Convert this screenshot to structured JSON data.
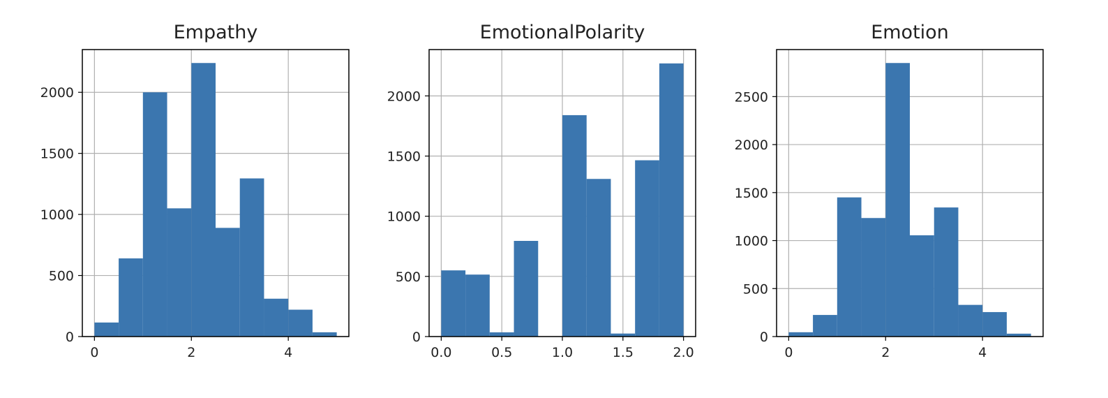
{
  "chart_data": [
    {
      "type": "bar",
      "title": "Empathy",
      "bin_edges": [
        0,
        0.5,
        1,
        1.5,
        2,
        2.5,
        3,
        3.5,
        4,
        4.5,
        5
      ],
      "values": [
        115,
        640,
        2000,
        1050,
        2240,
        890,
        1295,
        310,
        220,
        35
      ],
      "xlim": [
        -0.25,
        5.25
      ],
      "ylim": [
        0,
        2350
      ],
      "xticks": [
        0,
        2,
        4
      ],
      "xtick_labels": [
        "0",
        "2",
        "4"
      ],
      "yticks": [
        0,
        500,
        1000,
        1500,
        2000
      ],
      "ytick_labels": [
        "0",
        "500",
        "1000",
        "1500",
        "2000"
      ],
      "grid": true,
      "color": "#3b76af"
    },
    {
      "type": "bar",
      "title": "EmotionalPolarity",
      "bin_edges": [
        0,
        0.2,
        0.4,
        0.6,
        0.8,
        1.0,
        1.2,
        1.4,
        1.6,
        1.8,
        2.0
      ],
      "values": [
        550,
        515,
        35,
        795,
        0,
        1840,
        1310,
        25,
        1465,
        2270
      ],
      "xlim": [
        -0.1,
        2.1
      ],
      "ylim": [
        0,
        2385
      ],
      "xticks": [
        0,
        0.5,
        1,
        1.5,
        2
      ],
      "xtick_labels": [
        "0.0",
        "0.5",
        "1.0",
        "1.5",
        "2.0"
      ],
      "yticks": [
        0,
        500,
        1000,
        1500,
        2000
      ],
      "ytick_labels": [
        "0",
        "500",
        "1000",
        "1500",
        "2000"
      ],
      "grid": true,
      "color": "#3b76af"
    },
    {
      "type": "bar",
      "title": "Emotion",
      "bin_edges": [
        0,
        0.5,
        1,
        1.5,
        2,
        2.5,
        3,
        3.5,
        4,
        4.5,
        5
      ],
      "values": [
        45,
        225,
        1450,
        1235,
        2850,
        1055,
        1345,
        330,
        255,
        30
      ],
      "xlim": [
        -0.25,
        5.25
      ],
      "ylim": [
        0,
        2990
      ],
      "xticks": [
        0,
        2,
        4
      ],
      "xtick_labels": [
        "0",
        "2",
        "4"
      ],
      "yticks": [
        0,
        500,
        1000,
        1500,
        2000,
        2500
      ],
      "ytick_labels": [
        "0",
        "500",
        "1000",
        "1500",
        "2000",
        "2500"
      ],
      "grid": true,
      "color": "#3b76af"
    }
  ]
}
